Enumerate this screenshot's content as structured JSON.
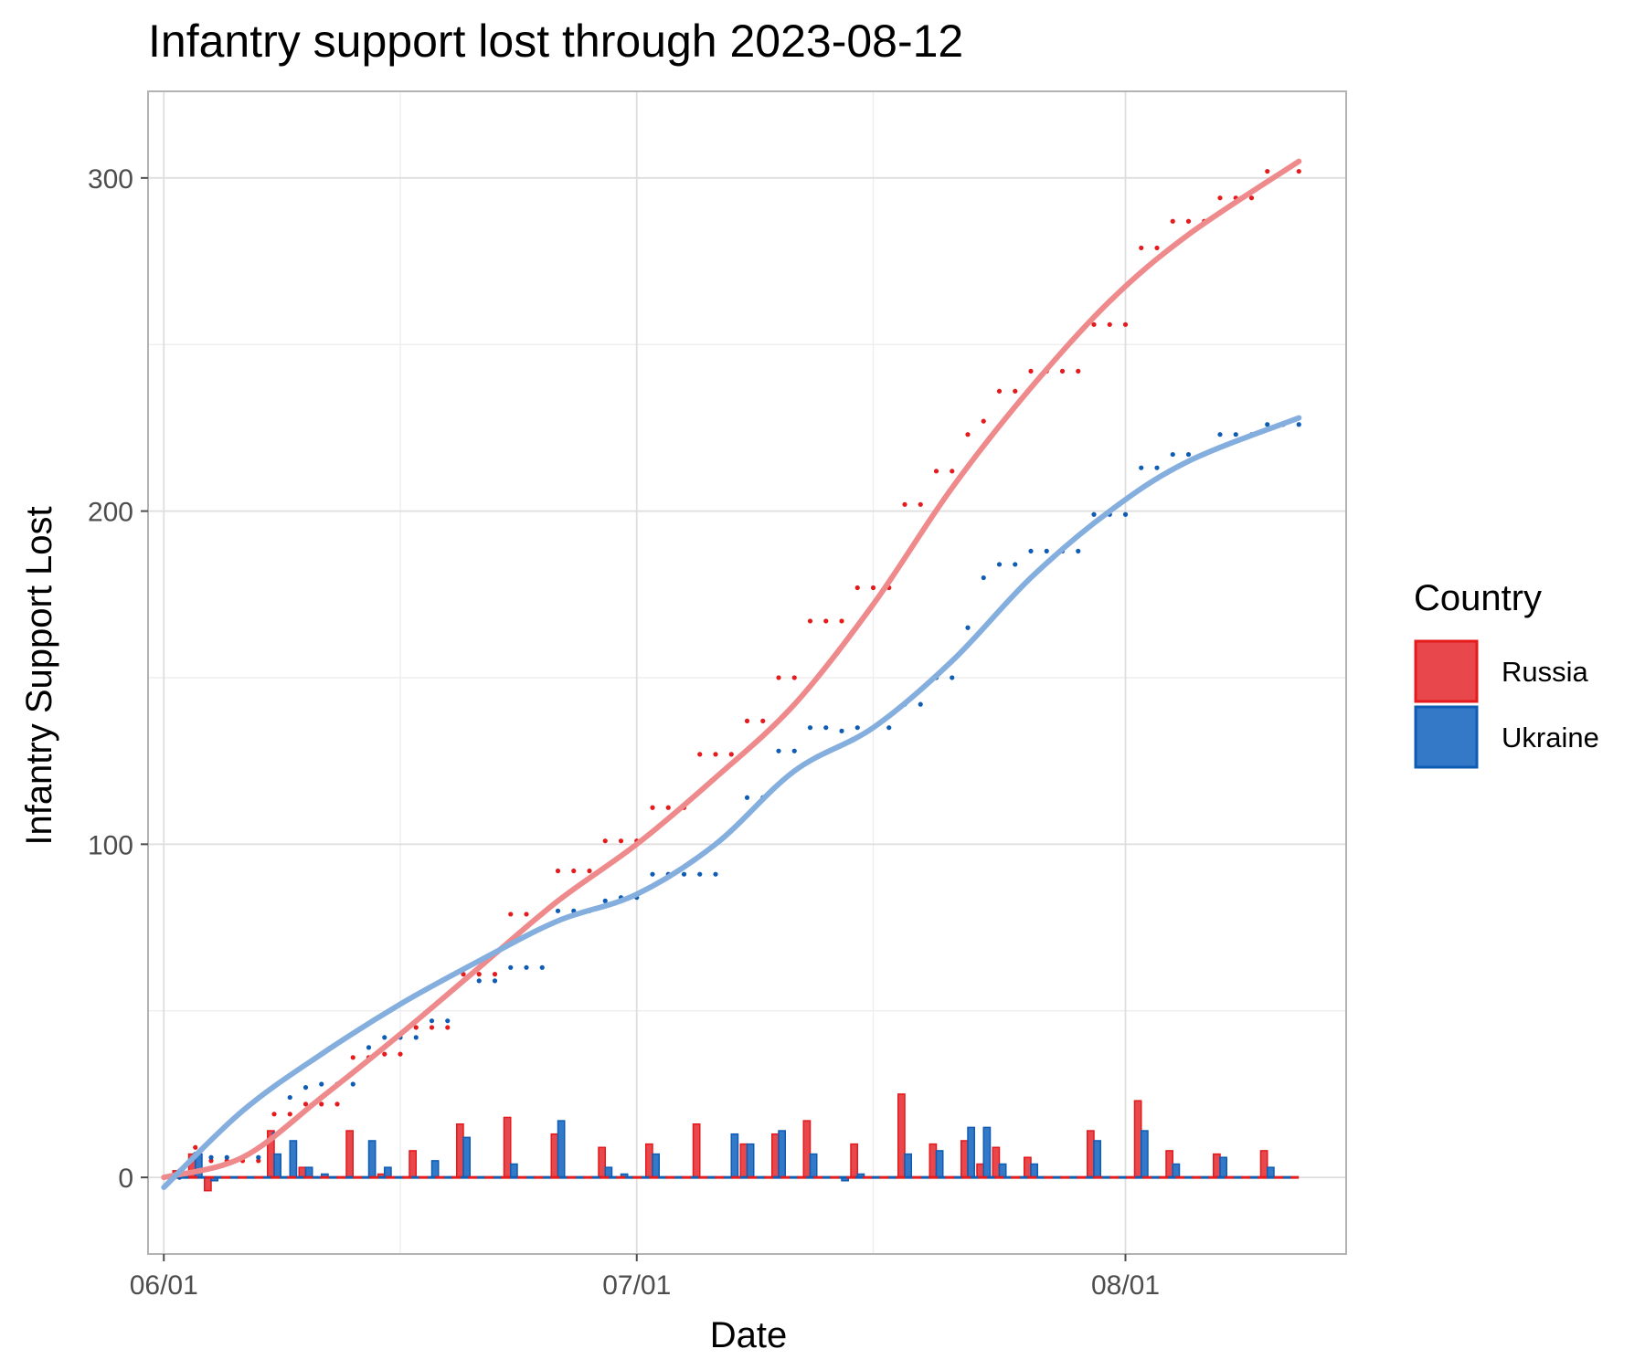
{
  "chart_data": {
    "type": "line",
    "title": "Infantry support lost through 2023-08-12",
    "xlabel": "Date",
    "ylabel": "Infantry Support Lost",
    "x_range": [
      "2023-05-31",
      "2023-08-15"
    ],
    "ylim": [
      -23,
      326
    ],
    "x_ticks": [
      {
        "date": "2023-06-01",
        "label": "06/01"
      },
      {
        "date": "2023-07-01",
        "label": "07/01"
      },
      {
        "date": "2023-08-01",
        "label": "08/01"
      }
    ],
    "x_minor_dates": [
      "2023-06-16",
      "2023-07-16"
    ],
    "y_ticks": [
      0,
      100,
      200,
      300
    ],
    "y_minor": [
      50,
      150,
      250
    ],
    "grid": true,
    "legend": {
      "title": "Country",
      "position": "right"
    },
    "series": [
      {
        "name": "Russia",
        "color": "#e41a1c",
        "fill": "#e8474b",
        "smooth_color": "#ef8a8c",
        "dates": [
          "2023-06-01",
          "2023-06-02",
          "2023-06-03",
          "2023-06-04",
          "2023-06-05",
          "2023-06-06",
          "2023-06-07",
          "2023-06-08",
          "2023-06-09",
          "2023-06-10",
          "2023-06-11",
          "2023-06-12",
          "2023-06-13",
          "2023-06-14",
          "2023-06-15",
          "2023-06-16",
          "2023-06-17",
          "2023-06-18",
          "2023-06-19",
          "2023-06-20",
          "2023-06-21",
          "2023-06-22",
          "2023-06-23",
          "2023-06-24",
          "2023-06-25",
          "2023-06-26",
          "2023-06-27",
          "2023-06-28",
          "2023-06-29",
          "2023-06-30",
          "2023-07-01",
          "2023-07-02",
          "2023-07-03",
          "2023-07-04",
          "2023-07-05",
          "2023-07-06",
          "2023-07-07",
          "2023-07-08",
          "2023-07-09",
          "2023-07-10",
          "2023-07-11",
          "2023-07-12",
          "2023-07-13",
          "2023-07-14",
          "2023-07-15",
          "2023-07-16",
          "2023-07-17",
          "2023-07-18",
          "2023-07-19",
          "2023-07-20",
          "2023-07-21",
          "2023-07-22",
          "2023-07-23",
          "2023-07-24",
          "2023-07-25",
          "2023-07-26",
          "2023-07-27",
          "2023-07-28",
          "2023-07-29",
          "2023-07-30",
          "2023-07-31",
          "2023-08-01",
          "2023-08-02",
          "2023-08-03",
          "2023-08-04",
          "2023-08-05",
          "2023-08-06",
          "2023-08-07",
          "2023-08-08",
          "2023-08-09",
          "2023-08-10",
          "2023-08-11",
          "2023-08-12"
        ],
        "cumulative": [
          0,
          2,
          9,
          5,
          5,
          5,
          5,
          19,
          19,
          22,
          22,
          22,
          36,
          36,
          37,
          37,
          45,
          45,
          45,
          61,
          61,
          61,
          79,
          79,
          79,
          92,
          92,
          92,
          101,
          101,
          101,
          111,
          111,
          111,
          127,
          127,
          127,
          137,
          137,
          150,
          150,
          167,
          167,
          167,
          177,
          177,
          177,
          202,
          202,
          212,
          212,
          223,
          227,
          236,
          236,
          242,
          242,
          242,
          242,
          256,
          256,
          256,
          279,
          279,
          287,
          287,
          287,
          294,
          294,
          294,
          302,
          302,
          302
        ],
        "daily": [
          0,
          2,
          7,
          -4,
          0,
          0,
          0,
          14,
          0,
          3,
          0,
          0,
          14,
          0,
          1,
          0,
          8,
          0,
          0,
          16,
          0,
          0,
          18,
          0,
          0,
          13,
          0,
          0,
          9,
          0,
          0,
          10,
          0,
          0,
          16,
          0,
          0,
          10,
          0,
          13,
          0,
          17,
          0,
          0,
          10,
          0,
          0,
          25,
          0,
          10,
          0,
          11,
          4,
          9,
          0,
          6,
          0,
          0,
          0,
          14,
          0,
          0,
          23,
          0,
          8,
          0,
          0,
          7,
          0,
          0,
          8,
          0,
          0
        ],
        "smooth": [
          [
            0,
            0
          ],
          [
            5,
            6
          ],
          [
            10,
            24
          ],
          [
            15,
            43
          ],
          [
            20,
            63
          ],
          [
            25,
            83
          ],
          [
            30,
            100
          ],
          [
            35,
            120
          ],
          [
            40,
            142
          ],
          [
            45,
            172
          ],
          [
            50,
            207
          ],
          [
            55,
            237
          ],
          [
            60,
            263
          ],
          [
            65,
            283
          ],
          [
            72,
            305
          ]
        ]
      },
      {
        "name": "Ukraine",
        "color": "#0e5cb4",
        "fill": "#3478c8",
        "smooth_color": "#84aede",
        "dates": [
          "2023-06-01",
          "2023-06-02",
          "2023-06-03",
          "2023-06-04",
          "2023-06-05",
          "2023-06-06",
          "2023-06-07",
          "2023-06-08",
          "2023-06-09",
          "2023-06-10",
          "2023-06-11",
          "2023-06-12",
          "2023-06-13",
          "2023-06-14",
          "2023-06-15",
          "2023-06-16",
          "2023-06-17",
          "2023-06-18",
          "2023-06-19",
          "2023-06-20",
          "2023-06-21",
          "2023-06-22",
          "2023-06-23",
          "2023-06-24",
          "2023-06-25",
          "2023-06-26",
          "2023-06-27",
          "2023-06-28",
          "2023-06-29",
          "2023-06-30",
          "2023-07-01",
          "2023-07-02",
          "2023-07-03",
          "2023-07-04",
          "2023-07-05",
          "2023-07-06",
          "2023-07-07",
          "2023-07-08",
          "2023-07-09",
          "2023-07-10",
          "2023-07-11",
          "2023-07-12",
          "2023-07-13",
          "2023-07-14",
          "2023-07-15",
          "2023-07-16",
          "2023-07-17",
          "2023-07-18",
          "2023-07-19",
          "2023-07-20",
          "2023-07-21",
          "2023-07-22",
          "2023-07-23",
          "2023-07-24",
          "2023-07-25",
          "2023-07-26",
          "2023-07-27",
          "2023-07-28",
          "2023-07-29",
          "2023-07-30",
          "2023-07-31",
          "2023-08-01",
          "2023-08-02",
          "2023-08-03",
          "2023-08-04",
          "2023-08-05",
          "2023-08-06",
          "2023-08-07",
          "2023-08-08",
          "2023-08-09",
          "2023-08-10",
          "2023-08-11",
          "2023-08-12"
        ],
        "cumulative": [
          0,
          0,
          7,
          6,
          6,
          6,
          6,
          13,
          24,
          27,
          28,
          28,
          28,
          39,
          42,
          42,
          42,
          47,
          47,
          59,
          59,
          59,
          63,
          63,
          63,
          80,
          80,
          80,
          83,
          84,
          84,
          91,
          91,
          91,
          91,
          91,
          104,
          114,
          114,
          128,
          128,
          135,
          135,
          134,
          135,
          135,
          135,
          142,
          142,
          150,
          150,
          165,
          180,
          184,
          184,
          188,
          188,
          188,
          188,
          199,
          199,
          199,
          213,
          213,
          217,
          217,
          217,
          223,
          223,
          223,
          226,
          226,
          226
        ],
        "daily": [
          0,
          0,
          7,
          -1,
          0,
          0,
          0,
          7,
          11,
          3,
          1,
          0,
          0,
          11,
          3,
          0,
          0,
          5,
          0,
          12,
          0,
          0,
          4,
          0,
          0,
          17,
          0,
          0,
          3,
          1,
          0,
          7,
          0,
          0,
          0,
          0,
          13,
          10,
          0,
          14,
          0,
          7,
          0,
          -1,
          1,
          0,
          0,
          7,
          0,
          8,
          0,
          15,
          15,
          4,
          0,
          4,
          0,
          0,
          0,
          11,
          0,
          0,
          14,
          0,
          4,
          0,
          0,
          6,
          0,
          0,
          3,
          0,
          0
        ],
        "smooth": [
          [
            0,
            -3
          ],
          [
            5,
            20
          ],
          [
            10,
            37
          ],
          [
            15,
            52
          ],
          [
            20,
            65
          ],
          [
            25,
            77
          ],
          [
            30,
            85
          ],
          [
            35,
            100
          ],
          [
            40,
            122
          ],
          [
            45,
            135
          ],
          [
            50,
            155
          ],
          [
            55,
            180
          ],
          [
            60,
            200
          ],
          [
            65,
            215
          ],
          [
            72,
            228
          ]
        ]
      }
    ]
  }
}
